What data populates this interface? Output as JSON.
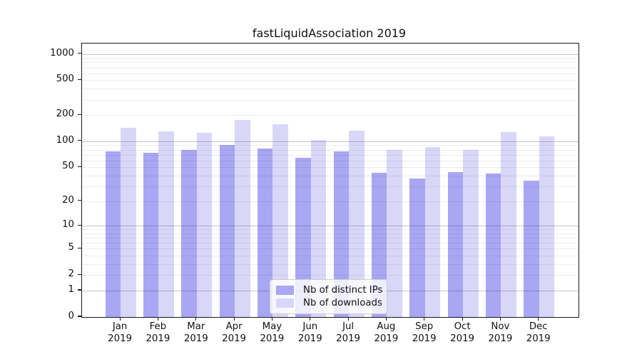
{
  "colors": {
    "distinct_ips_bar": "#a9a6f4",
    "downloads_bar": "#d9d7f8",
    "spine": "#1a1a1a",
    "background": "#ffffff"
  },
  "chart_data": {
    "type": "bar",
    "title": "fastLiquidAssociation 2019",
    "xlabel": "",
    "ylabel": "",
    "yscale": "log1p",
    "ylim": [
      0,
      1300
    ],
    "grid": "on",
    "legend_position": "lower center",
    "yticks": [
      1000,
      500,
      200,
      100,
      50,
      20,
      10,
      5,
      2,
      1,
      0
    ],
    "ytick_labels": [
      "1000",
      "500",
      "200",
      "100",
      "50",
      "20",
      "10",
      "5",
      "2",
      "1",
      "0"
    ],
    "major_gridlines": [
      1,
      10,
      100,
      1000
    ],
    "minor_gridlines": [
      2,
      3,
      4,
      5,
      6,
      7,
      8,
      9,
      20,
      30,
      40,
      50,
      60,
      70,
      80,
      90,
      200,
      300,
      400,
      500,
      600,
      700,
      800,
      900
    ],
    "categories": [
      {
        "month": "Jan",
        "year": "2019"
      },
      {
        "month": "Feb",
        "year": "2019"
      },
      {
        "month": "Mar",
        "year": "2019"
      },
      {
        "month": "Apr",
        "year": "2019"
      },
      {
        "month": "May",
        "year": "2019"
      },
      {
        "month": "Jun",
        "year": "2019"
      },
      {
        "month": "Jul",
        "year": "2019"
      },
      {
        "month": "Aug",
        "year": "2019"
      },
      {
        "month": "Sep",
        "year": "2019"
      },
      {
        "month": "Oct",
        "year": "2019"
      },
      {
        "month": "Nov",
        "year": "2019"
      },
      {
        "month": "Dec",
        "year": "2019"
      }
    ],
    "series": [
      {
        "name": "Nb of distinct IPs",
        "color": "#a9a6f4",
        "values": [
          77,
          74,
          79,
          90,
          83,
          65,
          77,
          43,
          37,
          44,
          42,
          35
        ]
      },
      {
        "name": "Nb of downloads",
        "color": "#d9d7f8",
        "values": [
          142,
          130,
          126,
          175,
          158,
          103,
          133,
          79,
          85,
          79,
          128,
          115
        ]
      }
    ]
  }
}
